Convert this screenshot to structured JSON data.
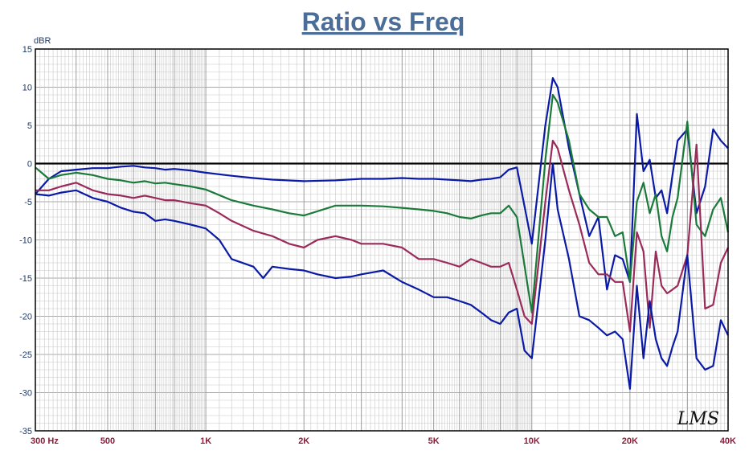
{
  "chart_data": {
    "type": "line",
    "title": "Ratio vs Freq",
    "ylabel": "dBR",
    "xlabel": "",
    "xscale": "log",
    "xlim": [
      300,
      40000
    ],
    "ylim": [
      -35,
      15
    ],
    "yticks": [
      15,
      10,
      5,
      0,
      -5,
      -10,
      -15,
      -20,
      -25,
      -30,
      -35
    ],
    "xticks": [
      {
        "value": 300,
        "label": "300  Hz"
      },
      {
        "value": 500,
        "label": "500"
      },
      {
        "value": 1000,
        "label": "1K"
      },
      {
        "value": 2000,
        "label": "2K"
      },
      {
        "value": 5000,
        "label": "5K"
      },
      {
        "value": 10000,
        "label": "10K"
      },
      {
        "value": 20000,
        "label": "20K"
      },
      {
        "value": 40000,
        "label": "40K"
      }
    ],
    "grid": true,
    "signature": "LMS",
    "colors": {
      "title": "#4a6e98",
      "ytick": "#1f3a68",
      "xtick": "#8a1f3a",
      "grid": "#c8c8c8",
      "zero_line": "#000000"
    },
    "series": [
      {
        "color": "#0a1aa6",
        "x": [
          300,
          330,
          360,
          400,
          450,
          500,
          550,
          600,
          650,
          700,
          750,
          800,
          900,
          1000,
          1200,
          1400,
          1600,
          2000,
          2500,
          3000,
          3500,
          4000,
          4500,
          5000,
          5500,
          6000,
          6500,
          7000,
          7500,
          8000,
          8500,
          9000,
          10000,
          11000,
          11600,
          12000,
          13000,
          14000,
          15000,
          16000,
          17000,
          18000,
          19000,
          20000,
          21000,
          22000,
          23000,
          24000,
          25000,
          26000,
          27000,
          28000,
          30000,
          32000,
          34000,
          36000,
          38000,
          40000
        ],
        "y": [
          -4.0,
          -2.0,
          -1.0,
          -0.8,
          -0.6,
          -0.6,
          -0.4,
          -0.3,
          -0.5,
          -0.6,
          -0.8,
          -0.7,
          -0.9,
          -1.2,
          -1.6,
          -1.9,
          -2.1,
          -2.3,
          -2.2,
          -2.0,
          -2.0,
          -1.9,
          -2.0,
          -2.0,
          -2.1,
          -2.2,
          -2.3,
          -2.1,
          -2.0,
          -1.8,
          -0.8,
          -0.5,
          -10.5,
          5.0,
          11.2,
          10.0,
          2.0,
          -4.0,
          -9.5,
          -7.0,
          -16.5,
          -12.0,
          -12.5,
          -15.5,
          6.5,
          -1.0,
          0.5,
          -4.5,
          -3.5,
          -6.5,
          -1.5,
          3.0,
          4.5,
          -6.5,
          -3.0,
          4.5,
          3.0,
          2.0
        ]
      },
      {
        "color": "#1a7a3a",
        "x": [
          300,
          330,
          360,
          400,
          450,
          500,
          550,
          600,
          650,
          700,
          750,
          800,
          900,
          1000,
          1200,
          1400,
          1600,
          1800,
          2000,
          2500,
          3000,
          3500,
          4000,
          4500,
          5000,
          5500,
          6000,
          6500,
          7000,
          7500,
          8000,
          8500,
          9000,
          10000,
          11000,
          11600,
          12000,
          13000,
          14000,
          15000,
          16000,
          17000,
          18000,
          19000,
          20000,
          21000,
          22000,
          23000,
          24000,
          25000,
          26000,
          27000,
          28000,
          30000,
          32000,
          34000,
          36000,
          38000,
          40000
        ],
        "y": [
          -0.5,
          -2.0,
          -1.5,
          -1.2,
          -1.5,
          -2.0,
          -2.2,
          -2.5,
          -2.3,
          -2.6,
          -2.5,
          -2.7,
          -3.0,
          -3.4,
          -4.8,
          -5.5,
          -6.0,
          -6.5,
          -6.8,
          -5.5,
          -5.5,
          -5.6,
          -5.8,
          -6.0,
          -6.2,
          -6.5,
          -7.0,
          -7.2,
          -6.8,
          -6.5,
          -6.5,
          -5.5,
          -7.0,
          -19.5,
          0.5,
          9.0,
          8.0,
          3.0,
          -4.0,
          -6.0,
          -7.0,
          -7.0,
          -9.5,
          -9.0,
          -15.5,
          -5.0,
          -2.5,
          -6.5,
          -4.0,
          -9.5,
          -11.5,
          -7.0,
          -4.5,
          5.5,
          -8.0,
          -9.5,
          -6.0,
          -4.5,
          -9.0
        ]
      },
      {
        "color": "#9a2a5a",
        "x": [
          300,
          330,
          360,
          400,
          450,
          500,
          550,
          600,
          650,
          700,
          750,
          800,
          900,
          1000,
          1100,
          1200,
          1400,
          1600,
          1800,
          2000,
          2200,
          2500,
          2800,
          3000,
          3500,
          4000,
          4500,
          5000,
          5500,
          6000,
          6500,
          7000,
          7500,
          8000,
          8500,
          9000,
          9500,
          10000,
          11000,
          11600,
          12000,
          13000,
          14000,
          15000,
          16000,
          17000,
          18000,
          19000,
          20000,
          21000,
          22000,
          23000,
          24000,
          25000,
          26000,
          27000,
          28000,
          30000,
          32000,
          34000,
          36000,
          38000,
          40000
        ],
        "y": [
          -3.5,
          -3.5,
          -3.0,
          -2.5,
          -3.5,
          -4.0,
          -4.2,
          -4.5,
          -4.2,
          -4.5,
          -4.8,
          -4.8,
          -5.2,
          -5.5,
          -6.5,
          -7.5,
          -8.8,
          -9.5,
          -10.5,
          -11.0,
          -10.0,
          -9.5,
          -10.0,
          -10.5,
          -10.5,
          -11.0,
          -12.5,
          -12.5,
          -13.0,
          -13.5,
          -12.5,
          -13.0,
          -13.5,
          -13.5,
          -13.0,
          -16.5,
          -20.0,
          -21.0,
          -5.0,
          3.0,
          2.0,
          -3.5,
          -8.0,
          -13.0,
          -14.5,
          -14.5,
          -15.5,
          -15.5,
          -22.0,
          -9.0,
          -11.5,
          -21.5,
          -11.5,
          -16.0,
          -17.0,
          -16.5,
          -16.0,
          -12.0,
          2.5,
          -19.0,
          -18.5,
          -13.0,
          -11.0
        ]
      },
      {
        "color": "#0a1aa6",
        "x": [
          300,
          330,
          360,
          400,
          450,
          500,
          550,
          600,
          650,
          700,
          750,
          800,
          900,
          1000,
          1100,
          1200,
          1400,
          1500,
          1600,
          1800,
          2000,
          2200,
          2500,
          2800,
          3000,
          3500,
          4000,
          4500,
          5000,
          5500,
          6000,
          6500,
          7000,
          7500,
          8000,
          8500,
          9000,
          9500,
          10000,
          11000,
          11600,
          12000,
          13000,
          14000,
          15000,
          16000,
          17000,
          18000,
          19000,
          20000,
          21000,
          22000,
          23000,
          24000,
          25000,
          26000,
          27000,
          28000,
          30000,
          32000,
          34000,
          36000,
          38000,
          40000
        ],
        "y": [
          -4.0,
          -4.2,
          -3.8,
          -3.5,
          -4.5,
          -5.0,
          -5.8,
          -6.3,
          -6.5,
          -7.5,
          -7.3,
          -7.5,
          -8.0,
          -8.5,
          -10.0,
          -12.5,
          -13.5,
          -15.0,
          -13.5,
          -13.8,
          -14.0,
          -14.5,
          -15.0,
          -14.8,
          -14.5,
          -14.0,
          -15.5,
          -16.5,
          -17.5,
          -17.5,
          -18.0,
          -18.5,
          -19.5,
          -20.5,
          -21.0,
          -19.5,
          -19.0,
          -24.5,
          -25.5,
          -10.0,
          0.0,
          -6.0,
          -12.5,
          -20.0,
          -20.5,
          -21.5,
          -22.5,
          -22.0,
          -23.0,
          -29.5,
          -16.0,
          -25.5,
          -18.0,
          -23.0,
          -25.5,
          -26.5,
          -24.0,
          -22.0,
          -12.0,
          -25.5,
          -27.0,
          -26.5,
          -20.5,
          -22.5
        ]
      }
    ]
  }
}
